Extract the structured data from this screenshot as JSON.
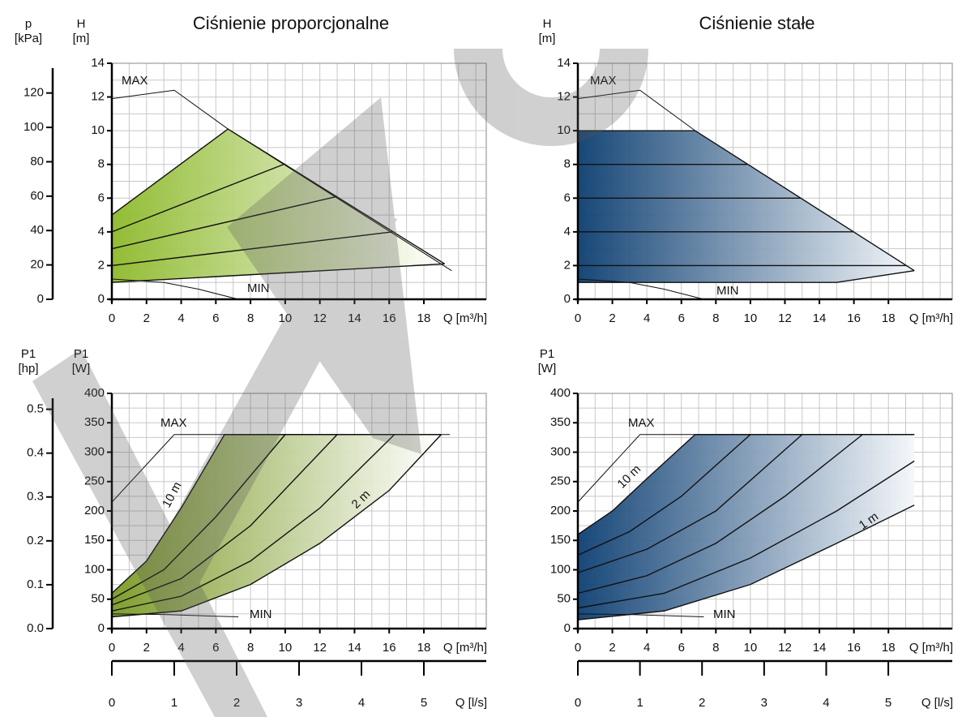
{
  "chart_data": [
    {
      "type": "line",
      "title": "Ciśnienie proporcjonalne",
      "xlabel": "Q [m³/h]",
      "ylabel": [
        "H",
        "[m]"
      ],
      "y2label": [
        "p",
        "[kPa]"
      ],
      "xlim": [
        0,
        21.6
      ],
      "ylim": [
        0,
        14
      ],
      "xticks": [
        0,
        2,
        4,
        6,
        8,
        10,
        12,
        14,
        16,
        18
      ],
      "yticks": [
        0,
        2,
        4,
        6,
        8,
        10,
        12,
        14
      ],
      "xgrid": [
        1,
        2,
        3,
        4,
        5,
        6,
        7,
        8,
        9,
        10,
        11,
        12,
        13,
        14,
        15,
        16,
        17,
        18,
        19,
        20,
        21
      ],
      "ygrid": [
        1,
        2,
        3,
        4,
        5,
        6,
        7,
        8,
        9,
        10,
        11,
        12,
        13,
        14
      ],
      "y2lim": [
        0,
        137.3
      ],
      "y2ticks": [
        0,
        20,
        40,
        60,
        80,
        100,
        120
      ],
      "fill_colors": [
        "#8db92a",
        "#ffffff"
      ],
      "series": [
        {
          "x": [
            0,
            6.7,
            19.2
          ],
          "values": [
            5,
            10.1,
            2.1
          ]
        },
        {
          "x": [
            0,
            19.2
          ],
          "values": [
            1,
            2.1
          ]
        },
        {
          "x": [
            0,
            9.9
          ],
          "values": [
            4,
            8
          ]
        },
        {
          "x": [
            0,
            13
          ],
          "values": [
            3,
            6.1
          ]
        },
        {
          "x": [
            0,
            16.2
          ],
          "values": [
            2,
            4
          ]
        },
        {
          "x": [
            0,
            3.6,
            6.7,
            19.6
          ],
          "values": [
            11.9,
            12.4,
            10.1,
            1.7
          ],
          "label": "MAX"
        },
        {
          "x": [
            0,
            3,
            5,
            7.3
          ],
          "values": [
            1.2,
            1.0,
            0.6,
            0
          ],
          "label": "MIN"
        }
      ]
    },
    {
      "type": "line",
      "title": "Ciśnienie stałe",
      "xlabel": "Q [m³/h]",
      "ylabel": [
        "H",
        "[m]"
      ],
      "xlim": [
        0,
        21.7
      ],
      "ylim": [
        0,
        14
      ],
      "xticks": [
        0,
        2,
        4,
        6,
        8,
        10,
        12,
        14,
        16,
        18
      ],
      "yticks": [
        0,
        2,
        4,
        6,
        8,
        10,
        12,
        14
      ],
      "xgrid": [
        1,
        2,
        3,
        4,
        5,
        6,
        7,
        8,
        9,
        10,
        11,
        12,
        13,
        14,
        15,
        16,
        17,
        18,
        19,
        20,
        21
      ],
      "ygrid": [
        1,
        2,
        3,
        4,
        5,
        6,
        7,
        8,
        9,
        10,
        11,
        12,
        13,
        14
      ],
      "fill_colors": [
        "#0b3d70",
        "#f4f7fa"
      ],
      "series": [
        {
          "x": [
            0,
            6.8,
            19.5
          ],
          "values": [
            10,
            10,
            1.7
          ]
        },
        {
          "x": [
            0,
            15,
            19.5
          ],
          "values": [
            1,
            1,
            1.7
          ]
        },
        {
          "x": [
            0,
            9.86
          ],
          "values": [
            8,
            8
          ]
        },
        {
          "x": [
            0,
            12.92
          ],
          "values": [
            6,
            6
          ]
        },
        {
          "x": [
            0,
            15.98
          ],
          "values": [
            4,
            4
          ]
        },
        {
          "x": [
            0,
            19.04
          ],
          "values": [
            2,
            2
          ]
        },
        {
          "x": [
            0,
            3.6,
            6.8
          ],
          "values": [
            11.9,
            12.4,
            10
          ],
          "label": "MAX"
        },
        {
          "x": [
            0,
            3,
            5,
            7.3
          ],
          "values": [
            1.2,
            1.0,
            0.6,
            0
          ],
          "label": "MIN"
        }
      ]
    },
    {
      "type": "line",
      "xlabel": "Q [m³/h]",
      "ylabel": [
        "P1",
        "[W]"
      ],
      "y2label": [
        "P1",
        "[hp]"
      ],
      "xlim": [
        0,
        21.6
      ],
      "ylim": [
        0,
        400
      ],
      "xticks": [
        0,
        2,
        4,
        6,
        8,
        10,
        12,
        14,
        16,
        18
      ],
      "yticks": [
        0,
        50,
        100,
        150,
        200,
        250,
        300,
        350,
        400
      ],
      "xgrid": [
        1,
        2,
        3,
        4,
        5,
        6,
        7,
        8,
        9,
        10,
        11,
        12,
        13,
        14,
        15,
        16,
        17,
        18,
        19,
        20,
        21
      ],
      "ygrid": [
        25,
        50,
        75,
        100,
        125,
        150,
        175,
        200,
        225,
        250,
        275,
        300,
        325,
        350,
        375,
        400
      ],
      "y2lim": [
        0,
        0.5362
      ],
      "y2ticks": [
        {
          "value": 0,
          "label": "0.0"
        },
        0.1,
        0.2,
        0.3,
        0.4,
        0.5
      ],
      "x2lim": [
        0,
        6.0
      ],
      "x2ticks": [
        0,
        1,
        2,
        3,
        4,
        5
      ],
      "x2label": "Q [l/s]",
      "fill_colors": [
        "#7a9a25",
        "#ffffff"
      ],
      "series": [
        {
          "x": [
            0,
            2,
            4,
            6.5,
            19
          ],
          "values": [
            60,
            115,
            205,
            330,
            330
          ],
          "label": "10 m"
        },
        {
          "x": [
            0,
            4,
            8,
            12,
            16,
            19
          ],
          "values": [
            20,
            30,
            75,
            145,
            235,
            330
          ]
        },
        {
          "x": [
            0,
            3,
            6,
            10
          ],
          "values": [
            50,
            100,
            190,
            330
          ]
        },
        {
          "x": [
            0,
            4,
            8,
            13
          ],
          "values": [
            40,
            85,
            175,
            330
          ]
        },
        {
          "x": [
            0,
            4,
            8,
            12,
            16.3
          ],
          "values": [
            30,
            55,
            115,
            205,
            330
          ],
          "label": "2 m"
        },
        {
          "x": [
            0,
            3.6,
            19.5
          ],
          "values": [
            215,
            330,
            330
          ],
          "label": "MAX"
        },
        {
          "x": [
            0,
            3,
            5,
            7.3
          ],
          "values": [
            25,
            24,
            22,
            20
          ],
          "label": "MIN"
        }
      ]
    },
    {
      "type": "line",
      "xlabel": "Q [m³/h]",
      "ylabel": [
        "P1",
        "[W]"
      ],
      "xlim": [
        0,
        21.7
      ],
      "ylim": [
        0,
        400
      ],
      "xticks": [
        0,
        2,
        4,
        6,
        8,
        10,
        12,
        14,
        16,
        18
      ],
      "yticks": [
        0,
        50,
        100,
        150,
        200,
        250,
        300,
        350,
        400
      ],
      "xgrid": [
        1,
        2,
        3,
        4,
        5,
        6,
        7,
        8,
        9,
        10,
        11,
        12,
        13,
        14,
        15,
        16,
        17,
        18,
        19,
        20,
        21
      ],
      "ygrid": [
        25,
        50,
        75,
        100,
        125,
        150,
        175,
        200,
        225,
        250,
        275,
        300,
        325,
        350,
        375,
        400
      ],
      "x2lim": [
        0,
        6.03
      ],
      "x2ticks": [
        0,
        1,
        2,
        3,
        4,
        5
      ],
      "x2label": "Q [l/s]",
      "fill_colors": [
        "#0c3e72",
        "#f4f7fa"
      ],
      "series": [
        {
          "x": [
            0,
            2,
            4,
            6.8,
            19.5
          ],
          "values": [
            160,
            200,
            255,
            330,
            330
          ],
          "label": "10 m"
        },
        {
          "x": [
            0,
            5,
            10,
            15,
            19.5
          ],
          "values": [
            15,
            30,
            75,
            145,
            210
          ],
          "label": "1 m"
        },
        {
          "x": [
            0,
            3,
            6,
            10
          ],
          "values": [
            125,
            165,
            225,
            330
          ]
        },
        {
          "x": [
            0,
            4,
            8,
            13
          ],
          "values": [
            95,
            135,
            200,
            330
          ]
        },
        {
          "x": [
            0,
            4,
            8,
            12,
            16.5
          ],
          "values": [
            60,
            90,
            145,
            225,
            330
          ]
        },
        {
          "x": [
            0,
            5,
            10,
            15,
            19.5
          ],
          "values": [
            35,
            60,
            120,
            200,
            285
          ]
        },
        {
          "x": [
            0,
            3.6,
            19.5
          ],
          "values": [
            215,
            330,
            330
          ],
          "label": "MAX"
        },
        {
          "x": [
            0,
            3,
            5,
            7.3
          ],
          "values": [
            25,
            24,
            22,
            20
          ],
          "label": "MIN"
        }
      ]
    }
  ]
}
